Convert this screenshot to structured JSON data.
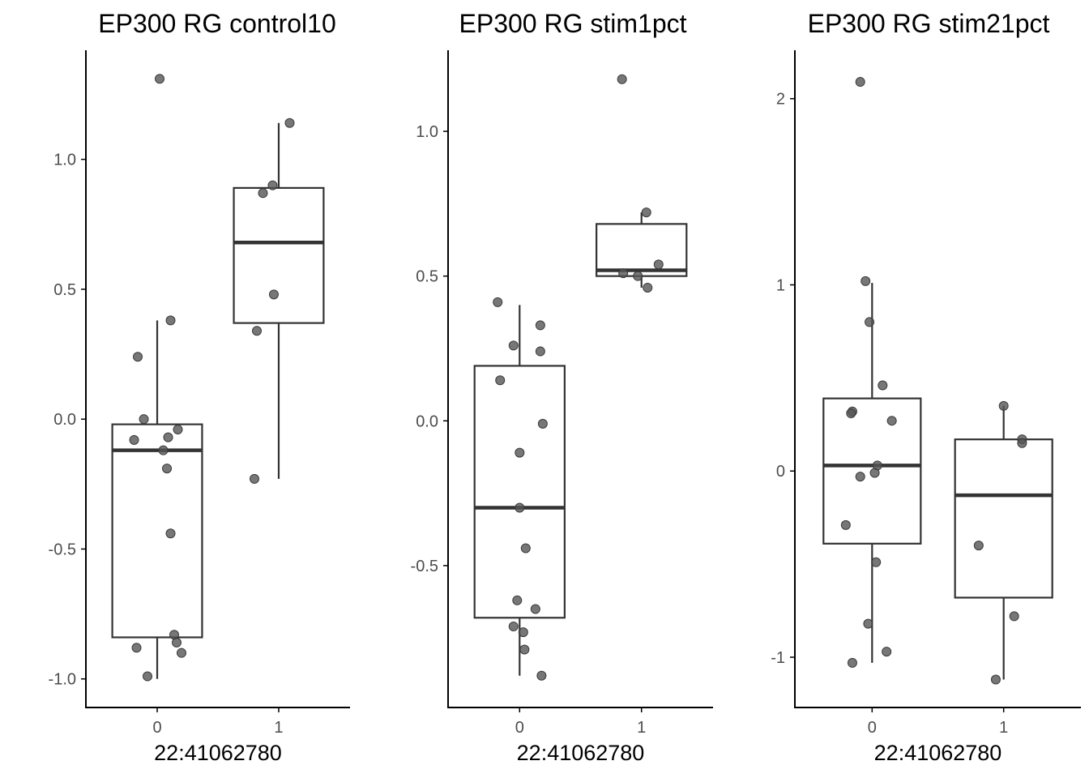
{
  "chart_data": [
    {
      "type": "box",
      "title": "EP300 RG control10",
      "xlabel": "22:41062780",
      "ylabel": "",
      "categories": [
        "0",
        "1"
      ],
      "yticks": [
        "-1.0",
        "-0.5",
        "0.0",
        "0.5",
        "1.0"
      ],
      "ytick_values": [
        -1.0,
        -0.5,
        0.0,
        0.5,
        1.0
      ],
      "ylim": [
        -1.11,
        1.42
      ],
      "boxes": [
        {
          "group": "0",
          "whisker_low": -1.0,
          "q1": -0.84,
          "median": -0.12,
          "q3": -0.02,
          "whisker_high": 0.38
        },
        {
          "group": "1",
          "whisker_low": -0.23,
          "q1": 0.37,
          "median": 0.68,
          "q3": 0.89,
          "whisker_high": 1.14
        }
      ],
      "points": [
        {
          "group": "0",
          "jitter": 0.02,
          "y": 1.31
        },
        {
          "group": "0",
          "jitter": 0.11,
          "y": 0.38
        },
        {
          "group": "0",
          "jitter": -0.16,
          "y": 0.24
        },
        {
          "group": "0",
          "jitter": -0.11,
          "y": 0.0
        },
        {
          "group": "0",
          "jitter": 0.17,
          "y": -0.04
        },
        {
          "group": "0",
          "jitter": -0.19,
          "y": -0.08
        },
        {
          "group": "0",
          "jitter": 0.09,
          "y": -0.07
        },
        {
          "group": "0",
          "jitter": 0.05,
          "y": -0.12
        },
        {
          "group": "0",
          "jitter": 0.08,
          "y": -0.19
        },
        {
          "group": "0",
          "jitter": 0.11,
          "y": -0.44
        },
        {
          "group": "0",
          "jitter": 0.14,
          "y": -0.83
        },
        {
          "group": "0",
          "jitter": 0.16,
          "y": -0.86
        },
        {
          "group": "0",
          "jitter": -0.17,
          "y": -0.88
        },
        {
          "group": "0",
          "jitter": 0.2,
          "y": -0.9
        },
        {
          "group": "0",
          "jitter": -0.08,
          "y": -0.99
        },
        {
          "group": "1",
          "jitter": 0.09,
          "y": 1.14
        },
        {
          "group": "1",
          "jitter": -0.05,
          "y": 0.9
        },
        {
          "group": "1",
          "jitter": -0.13,
          "y": 0.87
        },
        {
          "group": "1",
          "jitter": -0.04,
          "y": 0.48
        },
        {
          "group": "1",
          "jitter": -0.18,
          "y": 0.34
        },
        {
          "group": "1",
          "jitter": -0.2,
          "y": -0.23
        }
      ]
    },
    {
      "type": "box",
      "title": "EP300 RG stim1pct",
      "xlabel": "22:41062780",
      "ylabel": "",
      "categories": [
        "0",
        "1"
      ],
      "yticks": [
        "-0.5",
        "0.0",
        "0.5",
        "1.0"
      ],
      "ytick_values": [
        -0.5,
        0.0,
        0.5,
        1.0
      ],
      "ylim": [
        -0.99,
        1.28
      ],
      "boxes": [
        {
          "group": "0",
          "whisker_low": -0.88,
          "q1": -0.68,
          "median": -0.3,
          "q3": 0.19,
          "whisker_high": 0.4
        },
        {
          "group": "1",
          "whisker_low": 0.46,
          "q1": 0.5,
          "median": 0.52,
          "q3": 0.68,
          "whisker_high": 0.72
        }
      ],
      "points": [
        {
          "group": "0",
          "jitter": -0.18,
          "y": 0.41
        },
        {
          "group": "0",
          "jitter": 0.17,
          "y": 0.33
        },
        {
          "group": "0",
          "jitter": -0.05,
          "y": 0.26
        },
        {
          "group": "0",
          "jitter": 0.17,
          "y": 0.24
        },
        {
          "group": "0",
          "jitter": -0.16,
          "y": 0.14
        },
        {
          "group": "0",
          "jitter": 0.19,
          "y": -0.01
        },
        {
          "group": "0",
          "jitter": 0.0,
          "y": -0.11
        },
        {
          "group": "0",
          "jitter": 0.0,
          "y": -0.3
        },
        {
          "group": "0",
          "jitter": 0.05,
          "y": -0.44
        },
        {
          "group": "0",
          "jitter": -0.02,
          "y": -0.62
        },
        {
          "group": "0",
          "jitter": 0.13,
          "y": -0.65
        },
        {
          "group": "0",
          "jitter": -0.05,
          "y": -0.71
        },
        {
          "group": "0",
          "jitter": 0.03,
          "y": -0.73
        },
        {
          "group": "0",
          "jitter": 0.04,
          "y": -0.79
        },
        {
          "group": "0",
          "jitter": 0.18,
          "y": -0.88
        },
        {
          "group": "1",
          "jitter": -0.16,
          "y": 1.18
        },
        {
          "group": "1",
          "jitter": 0.04,
          "y": 0.72
        },
        {
          "group": "1",
          "jitter": 0.14,
          "y": 0.54
        },
        {
          "group": "1",
          "jitter": -0.15,
          "y": 0.51
        },
        {
          "group": "1",
          "jitter": -0.03,
          "y": 0.5
        },
        {
          "group": "1",
          "jitter": 0.05,
          "y": 0.46
        }
      ]
    },
    {
      "type": "box",
      "title": "EP300 RG stim21pct",
      "xlabel": "22:41062780",
      "ylabel": "",
      "categories": [
        "0",
        "1"
      ],
      "yticks": [
        "-1",
        "0",
        "1",
        "2"
      ],
      "ytick_values": [
        -1,
        0,
        1,
        2
      ],
      "ylim": [
        -1.27,
        2.26
      ],
      "boxes": [
        {
          "group": "0",
          "whisker_low": -1.03,
          "q1": -0.39,
          "median": 0.03,
          "q3": 0.39,
          "whisker_high": 1.01
        },
        {
          "group": "1",
          "whisker_low": -1.12,
          "q1": -0.68,
          "median": -0.13,
          "q3": 0.17,
          "whisker_high": 0.35
        }
      ],
      "points": [
        {
          "group": "0",
          "jitter": -0.09,
          "y": 2.09
        },
        {
          "group": "0",
          "jitter": -0.05,
          "y": 1.02
        },
        {
          "group": "0",
          "jitter": -0.02,
          "y": 0.8
        },
        {
          "group": "0",
          "jitter": 0.08,
          "y": 0.46
        },
        {
          "group": "0",
          "jitter": -0.15,
          "y": 0.32
        },
        {
          "group": "0",
          "jitter": -0.16,
          "y": 0.31
        },
        {
          "group": "0",
          "jitter": 0.15,
          "y": 0.27
        },
        {
          "group": "0",
          "jitter": 0.04,
          "y": 0.03
        },
        {
          "group": "0",
          "jitter": -0.09,
          "y": -0.03
        },
        {
          "group": "0",
          "jitter": 0.02,
          "y": -0.01
        },
        {
          "group": "0",
          "jitter": -0.2,
          "y": -0.29
        },
        {
          "group": "0",
          "jitter": 0.03,
          "y": -0.49
        },
        {
          "group": "0",
          "jitter": -0.03,
          "y": -0.82
        },
        {
          "group": "0",
          "jitter": 0.11,
          "y": -0.97
        },
        {
          "group": "0",
          "jitter": -0.15,
          "y": -1.03
        },
        {
          "group": "1",
          "jitter": 0.0,
          "y": 0.35
        },
        {
          "group": "1",
          "jitter": 0.14,
          "y": 0.17
        },
        {
          "group": "1",
          "jitter": 0.14,
          "y": 0.15
        },
        {
          "group": "1",
          "jitter": -0.19,
          "y": -0.4
        },
        {
          "group": "1",
          "jitter": 0.08,
          "y": -0.78
        },
        {
          "group": "1",
          "jitter": -0.06,
          "y": -1.12
        }
      ]
    }
  ],
  "style": {
    "point_color": "#555555",
    "point_stroke": "#3a3a3a",
    "box_color": "#333333",
    "axis_color": "#000000",
    "tick_label_color": "#4d4d4d",
    "title_color": "#000000"
  }
}
